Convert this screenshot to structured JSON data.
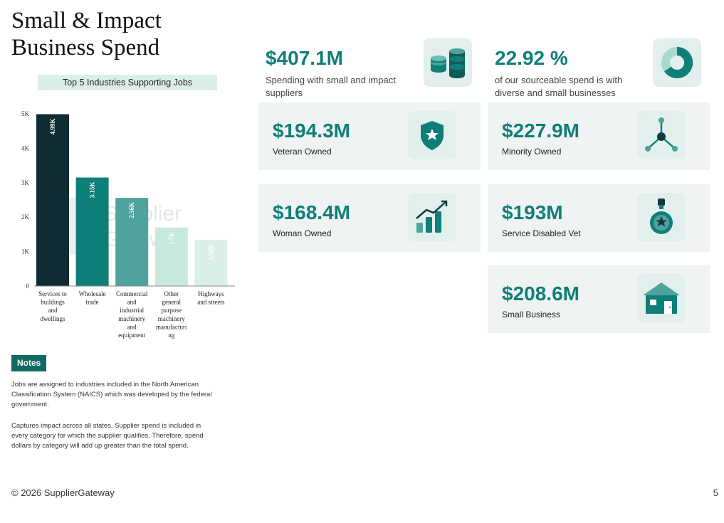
{
  "page": {
    "title_line1": "Small & Impact",
    "title_line2": "Business Spend",
    "footer": "© 2026 SupplierGateway",
    "page_number": "5"
  },
  "chart_data": {
    "type": "bar",
    "title": "Top 5 Industries Supporting Jobs",
    "categories": [
      [
        "Services to",
        "buildings",
        "and",
        "dwellings"
      ],
      [
        "Wholesale",
        "trade"
      ],
      [
        "Commercial",
        "and",
        "industrial",
        "machinery",
        "and",
        "equipment"
      ],
      [
        "Other",
        "general",
        "purpose",
        "machinery",
        "manufacturi",
        "ng"
      ],
      [
        "Highways",
        "and streets"
      ]
    ],
    "values": [
      4990,
      3150,
      2560,
      1700,
      1340
    ],
    "data_labels": [
      "4.99K",
      "3.15K",
      "2.56K",
      "1.7K",
      "1.34K"
    ],
    "y_ticks": [
      "0",
      "1K",
      "2K",
      "3K",
      "4K",
      "5K"
    ],
    "ylim": [
      0,
      5000
    ],
    "colors": [
      "#0f2c34",
      "#0e7f78",
      "#4fa39c",
      "#c8e9de",
      "#d9efe7"
    ],
    "watermark": [
      "Supplier",
      "Gateway"
    ]
  },
  "notes": {
    "badge": "Notes",
    "paragraph1": "Jobs are assigned to industries included in the North American Classification System (NAICS) which was developed by the federal government.",
    "paragraph2": "Captures impact across all states. Supplier spend is included in every category for which the supplier qualifies. Therefore, spend dollars by category will add up greater than the total spend."
  },
  "metrics": {
    "total": {
      "value": "$407.1M",
      "label": "Spending with small and impact suppliers",
      "icon": "coin-stack-icon"
    },
    "diverse": {
      "value": "22.92 %",
      "label": "of our sourceable spend is with diverse and small businesses",
      "icon": "donut-chart-icon"
    },
    "veteran": {
      "value": "$194.3M",
      "label": "Veteran Owned",
      "icon": "shield-star-icon"
    },
    "minority": {
      "value": "$227.9M",
      "label": "Minority Owned",
      "icon": "network-nodes-icon"
    },
    "woman": {
      "value": "$168.4M",
      "label": "Woman Owned",
      "icon": "growth-chart-icon"
    },
    "disabled_vet": {
      "value": "$193M",
      "label": "Service Disabled Vet",
      "icon": "medal-icon"
    },
    "small": {
      "value": "$208.6M",
      "label": "Small Business",
      "icon": "storefront-icon"
    }
  },
  "colors": {
    "accent": "#0e7f78",
    "dark": "#0f2c34",
    "card_bg": "#eff3f2",
    "icon_bg": "#e2efec",
    "badge": "#0f6b62"
  }
}
